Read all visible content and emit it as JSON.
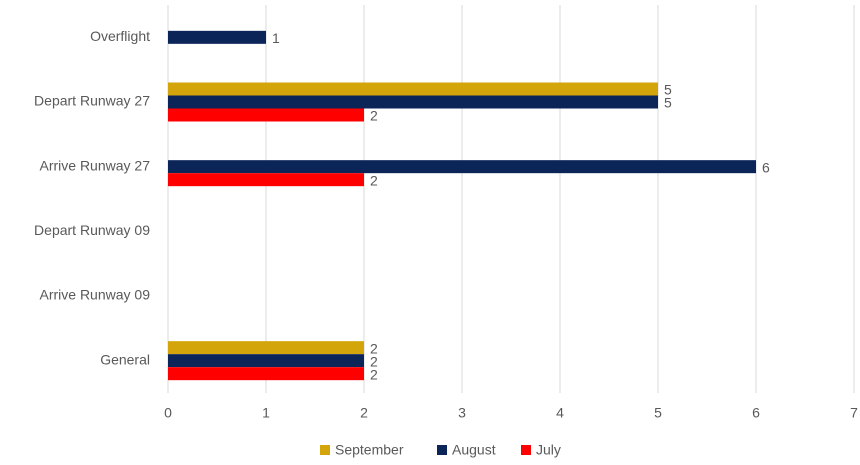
{
  "chart_data": {
    "type": "bar",
    "orientation": "horizontal",
    "categories": [
      "Overflight",
      "Depart Runway 27",
      "Arrive Runway 27",
      "Depart Runway 09",
      "Arrive Runway 09",
      "General"
    ],
    "series": [
      {
        "name": "September",
        "color": "#d4a50a",
        "values": [
          null,
          5,
          null,
          null,
          null,
          2
        ]
      },
      {
        "name": "August",
        "color": "#0b2559",
        "values": [
          1,
          5,
          6,
          null,
          null,
          2
        ]
      },
      {
        "name": "July",
        "color": "#ff0000",
        "values": [
          null,
          2,
          2,
          null,
          null,
          2
        ]
      }
    ],
    "xlim": [
      0,
      7
    ],
    "xticks": [
      0,
      1,
      2,
      3,
      4,
      5,
      6,
      7
    ],
    "grid": true,
    "legend": "bottom"
  }
}
